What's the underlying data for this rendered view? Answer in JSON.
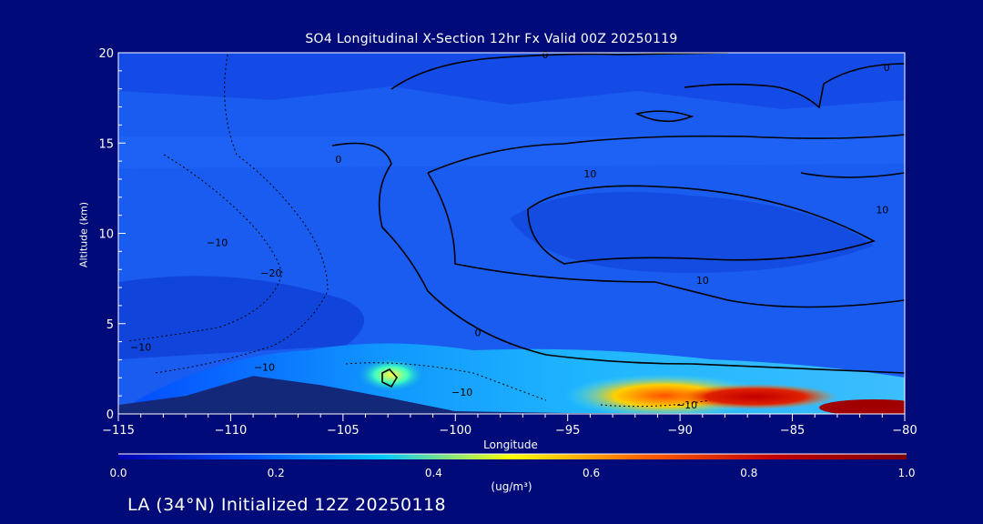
{
  "chart_data": {
    "type": "heatmap",
    "title": "SO4 Longitudinal X-Section 12hr  Fx Valid 00Z 20250119",
    "xlabel": "Longitude",
    "ylabel": "Altitude (km)",
    "xlim": [
      -115,
      -80
    ],
    "ylim": [
      0,
      20
    ],
    "x_ticks": [
      -115,
      -110,
      -105,
      -100,
      -95,
      -90,
      -85,
      -80
    ],
    "x_tick_labels": [
      "−115",
      "−110",
      "−105",
      "−100",
      "−95",
      "−90",
      "−85",
      "−80"
    ],
    "y_ticks": [
      0,
      5,
      10,
      15,
      20
    ],
    "y_tick_labels": [
      "0",
      "5",
      "10",
      "15",
      "20"
    ],
    "colorbar": {
      "min": 0.0,
      "max": 1.0,
      "ticks": [
        0.0,
        0.2,
        0.4,
        0.6,
        0.8,
        1.0
      ],
      "tick_labels": [
        "0.0",
        "0.2",
        "0.4",
        "0.6",
        "0.8",
        "1.0"
      ],
      "unit_label": "(ug/m³)",
      "colors": [
        "#0000b0",
        "#0050ff",
        "#00c8ff",
        "#ffff00",
        "#ff6000",
        "#c00000",
        "#800000"
      ]
    },
    "terrain_color": "#14287a",
    "terrain_profile": [
      [
        -115,
        0.5
      ],
      [
        -112,
        1.0
      ],
      [
        -109,
        2.1
      ],
      [
        -106,
        1.6
      ],
      [
        -103,
        0.9
      ],
      [
        -100,
        0.15
      ],
      [
        -95,
        0.05
      ],
      [
        -80,
        0.0
      ]
    ],
    "concentration_hotspots": [
      {
        "lon": -102.8,
        "alt": 2.1,
        "value": 0.55
      },
      {
        "lon": -92.0,
        "alt": 1.0,
        "value": 0.7
      },
      {
        "lon": -86.0,
        "alt": 1.0,
        "value": 0.95
      },
      {
        "lon": -81.0,
        "alt": 0.3,
        "value": 1.0
      }
    ],
    "contour_labels": [
      {
        "text": "0",
        "lon": -96.0,
        "alt": 19.9
      },
      {
        "text": "0",
        "lon": -80.8,
        "alt": 19.2
      },
      {
        "text": "0",
        "lon": -105.2,
        "alt": 14.1
      },
      {
        "text": "10",
        "lon": -94.0,
        "alt": 13.3
      },
      {
        "text": "10",
        "lon": -81.0,
        "alt": 11.3
      },
      {
        "text": "10",
        "lon": -89.0,
        "alt": 7.4
      },
      {
        "text": "0",
        "lon": -99.0,
        "alt": 4.5
      },
      {
        "text": "−10",
        "lon": -110.6,
        "alt": 9.5
      },
      {
        "text": "−20",
        "lon": -108.2,
        "alt": 7.8
      },
      {
        "text": "−10",
        "lon": -114.0,
        "alt": 3.7
      },
      {
        "text": "−10",
        "lon": -108.5,
        "alt": 2.6
      },
      {
        "text": "−10",
        "lon": -99.7,
        "alt": 1.2
      },
      {
        "text": "−10",
        "lon": -89.7,
        "alt": 0.5
      }
    ]
  },
  "footer": "LA (34°N) Initialized 12Z 20250118"
}
